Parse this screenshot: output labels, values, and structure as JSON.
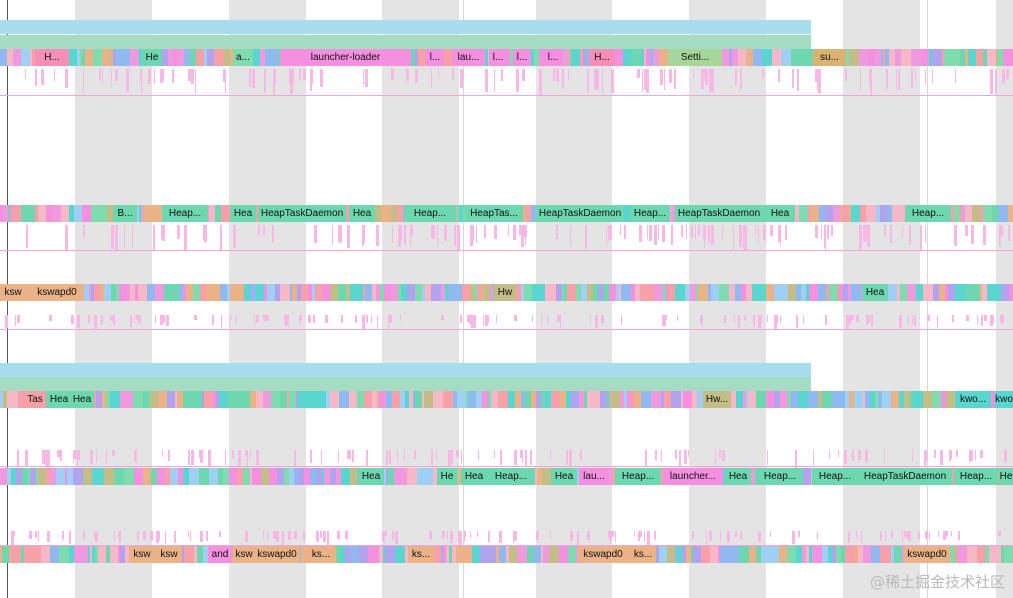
{
  "colors": {
    "band": "#e4e4e4",
    "blue_band": "#a8dcef",
    "green_band": "#a6dcc4",
    "tick": "#f7b8e6",
    "baseline": "#f2a6dd",
    "palette": [
      "#6dd7b0",
      "#f58fe0",
      "#f7a0a8",
      "#8fb9ef",
      "#c3bd88",
      "#58d6cf",
      "#ef9adf",
      "#b2a3ef",
      "#eab287",
      "#7fdcae",
      "#9fcff3",
      "#f6b7c6"
    ]
  },
  "tracks": [
    {
      "labels": [
        {
          "text": "H...",
          "color": "#f58fb9"
        },
        {
          "text": "He",
          "color": "#6dd7b0"
        },
        {
          "text": "a...",
          "color": "#7fdcae"
        },
        {
          "text": "launcher-loader",
          "color": "#f58fe0"
        },
        {
          "text": "l...",
          "color": "#f58fe0"
        },
        {
          "text": "lau...",
          "color": "#f58fe0"
        },
        {
          "text": "l...",
          "color": "#f58fe0"
        },
        {
          "text": "l...",
          "color": "#f58fe0"
        },
        {
          "text": "l...",
          "color": "#f58fe0"
        },
        {
          "text": "H...",
          "color": "#f58fb9"
        },
        {
          "text": "Setti...",
          "color": "#a6d69a"
        },
        {
          "text": "su...",
          "color": "#d9b36f"
        }
      ]
    },
    {
      "labels": [
        {
          "text": "B...",
          "color": "#6dd7b0"
        },
        {
          "text": "Heap...",
          "color": "#6dd7b0"
        },
        {
          "text": "Hea",
          "color": "#6dd7b0"
        },
        {
          "text": "HeapTaskDaemon",
          "color": "#6dd7b0"
        },
        {
          "text": "Hea",
          "color": "#6dd7b0"
        },
        {
          "text": "Heap...",
          "color": "#6dd7b0"
        },
        {
          "text": "HeapTas...",
          "color": "#6dd7b0"
        },
        {
          "text": "HeapTaskDaemon",
          "color": "#6dd7b0"
        },
        {
          "text": "Heap...",
          "color": "#6dd7b0"
        },
        {
          "text": "HeapTaskDaemon",
          "color": "#6dd7b0"
        },
        {
          "text": "Hea",
          "color": "#6dd7b0"
        },
        {
          "text": "Heap...",
          "color": "#6dd7b0"
        }
      ]
    },
    {
      "labels": [
        {
          "text": "ksw",
          "color": "#eab287"
        },
        {
          "text": "kswapd0",
          "color": "#eab287"
        },
        {
          "text": "Hw",
          "color": "#c3bd88"
        },
        {
          "text": "Hea",
          "color": "#6dd7b0"
        }
      ]
    },
    {
      "labels": [
        {
          "text": "Tas",
          "color": "#f7a0a8"
        },
        {
          "text": "Hea",
          "color": "#6dd7b0"
        },
        {
          "text": "Hea",
          "color": "#6dd7b0"
        },
        {
          "text": "Hw...",
          "color": "#c3bd88"
        },
        {
          "text": "kwo...",
          "color": "#58d6cf"
        },
        {
          "text": "kwo",
          "color": "#58d6cf"
        }
      ]
    },
    {
      "labels": [
        {
          "text": "Hea",
          "color": "#6dd7b0"
        },
        {
          "text": "He",
          "color": "#6dd7b0"
        },
        {
          "text": "Hea",
          "color": "#6dd7b0"
        },
        {
          "text": "Heap...",
          "color": "#6dd7b0"
        },
        {
          "text": "Hea",
          "color": "#6dd7b0"
        },
        {
          "text": "lau...",
          "color": "#f58fe0"
        },
        {
          "text": "Heap...",
          "color": "#6dd7b0"
        },
        {
          "text": "launcher...",
          "color": "#f58fe0"
        },
        {
          "text": "Hea",
          "color": "#6dd7b0"
        },
        {
          "text": "Heap...",
          "color": "#6dd7b0"
        },
        {
          "text": "Heap...",
          "color": "#6dd7b0"
        },
        {
          "text": "HeapTaskDaemon",
          "color": "#6dd7b0"
        },
        {
          "text": "Heap...",
          "color": "#6dd7b0"
        },
        {
          "text": "He",
          "color": "#6dd7b0"
        }
      ]
    },
    {
      "labels": [
        {
          "text": "ksw",
          "color": "#eab287"
        },
        {
          "text": "ksw",
          "color": "#eab287"
        },
        {
          "text": "and",
          "color": "#f58fe0"
        },
        {
          "text": "ksw",
          "color": "#eab287"
        },
        {
          "text": "kswapd0",
          "color": "#eab287"
        },
        {
          "text": "ks...",
          "color": "#eab287"
        },
        {
          "text": "ks...",
          "color": "#eab287"
        },
        {
          "text": "kswapd0",
          "color": "#eab287"
        },
        {
          "text": "ks...",
          "color": "#eab287"
        },
        {
          "text": "kswapd0",
          "color": "#eab287"
        }
      ]
    }
  ],
  "watermark": "@稀土掘金技术社区"
}
